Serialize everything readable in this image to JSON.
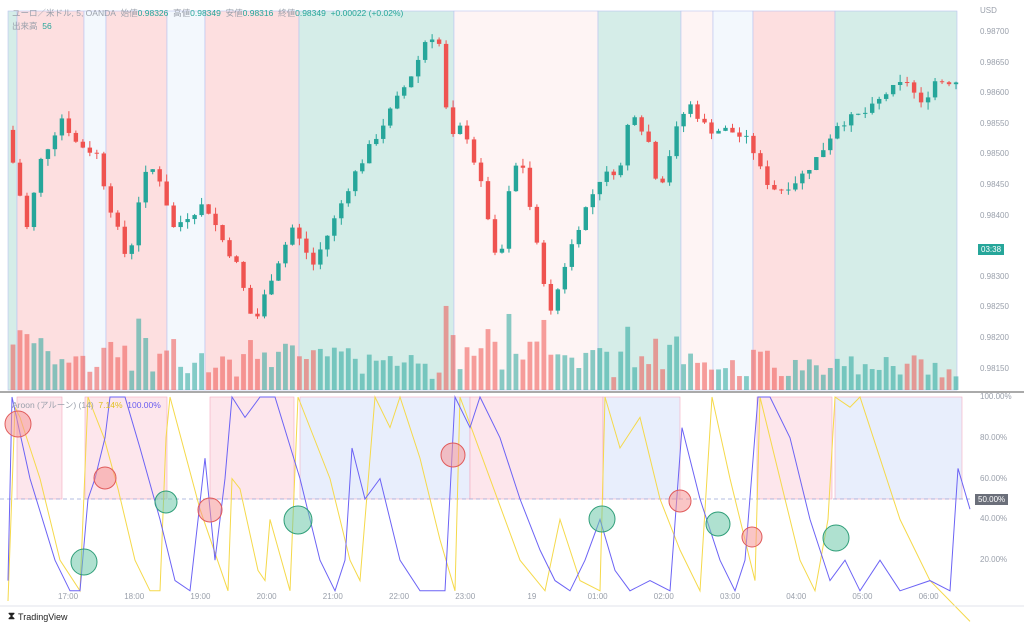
{
  "header": {
    "symbol": "ユーロ／米ドル, 5, OANDA",
    "open_label": "始値",
    "open": "0.98326",
    "high_label": "高値",
    "high": "0.98349",
    "low_label": "安値",
    "low": "0.98316",
    "close_label": "終値",
    "close": "0.98349",
    "change": "+0.00022 (+0.02%)",
    "volume_label": "出来高",
    "volume": "56"
  },
  "indicator": {
    "name": "Aroon (アルーン) (14)",
    "up_value": "7.14%",
    "down_value": "100.00%"
  },
  "price_axis": {
    "currency": "USD",
    "ticks": [
      "0.98700",
      "0.98650",
      "0.98600",
      "0.98550",
      "0.98500",
      "0.98450",
      "0.98400",
      "0.98300",
      "0.98250",
      "0.98200",
      "0.98150"
    ],
    "countdown": "03:38"
  },
  "aroon_axis": {
    "ticks": [
      "100.00%",
      "80.00%",
      "60.00%",
      "40.00%",
      "20.00%"
    ],
    "mid_tag": "50.00%"
  },
  "time_axis": [
    "17:00",
    "18:00",
    "19:00",
    "20:00",
    "21:00",
    "22:00",
    "23:00",
    "19",
    "01:00",
    "02:00",
    "03:00",
    "04:00",
    "05:00",
    "06:00"
  ],
  "brand": "TradingView",
  "colors": {
    "up": "#26a69a",
    "down": "#ef5350",
    "aroon_up": "#f5d94a",
    "aroon_down": "#6c63f5"
  },
  "chart_data": {
    "type": "candlestick",
    "price_path": [
      [
        0,
        0.9854
      ],
      [
        3,
        0.9846
      ],
      [
        6,
        0.9838
      ],
      [
        10,
        0.9849
      ],
      [
        16,
        0.9856
      ],
      [
        20,
        0.9852
      ],
      [
        26,
        0.985
      ],
      [
        29,
        0.9843
      ],
      [
        35,
        0.9832
      ],
      [
        39,
        0.9846
      ],
      [
        43,
        0.9848
      ],
      [
        48,
        0.9838
      ],
      [
        52,
        0.984
      ],
      [
        57,
        0.9842
      ],
      [
        62,
        0.9836
      ],
      [
        66,
        0.9832
      ],
      [
        71,
        0.9822
      ],
      [
        76,
        0.983
      ],
      [
        82,
        0.9838
      ],
      [
        88,
        0.9832
      ],
      [
        93,
        0.9838
      ],
      [
        99,
        0.9846
      ],
      [
        105,
        0.9852
      ],
      [
        111,
        0.9858
      ],
      [
        117,
        0.9864
      ],
      [
        121,
        0.987
      ],
      [
        124,
        0.9868
      ],
      [
        127,
        0.9852
      ],
      [
        131,
        0.9855
      ],
      [
        137,
        0.9843
      ],
      [
        141,
        0.983
      ],
      [
        145,
        0.9848
      ],
      [
        148,
        0.9848
      ],
      [
        152,
        0.9835
      ],
      [
        156,
        0.9824
      ],
      [
        160,
        0.9832
      ],
      [
        165,
        0.984
      ],
      [
        170,
        0.9846
      ],
      [
        176,
        0.9848
      ],
      [
        179,
        0.9858
      ],
      [
        184,
        0.9852
      ],
      [
        187,
        0.9844
      ],
      [
        193,
        0.9856
      ],
      [
        196,
        0.9858
      ],
      [
        201,
        0.9854
      ],
      [
        207,
        0.9854
      ],
      [
        213,
        0.9852
      ],
      [
        217,
        0.9846
      ],
      [
        221,
        0.9844
      ],
      [
        227,
        0.9846
      ],
      [
        233,
        0.985
      ],
      [
        238,
        0.9855
      ],
      [
        247,
        0.9857
      ],
      [
        252,
        0.986
      ],
      [
        258,
        0.9862
      ],
      [
        262,
        0.9858
      ],
      [
        266,
        0.9862
      ],
      [
        271,
        0.9862
      ]
    ],
    "ylim": [
      0.9812,
      0.9873
    ]
  }
}
